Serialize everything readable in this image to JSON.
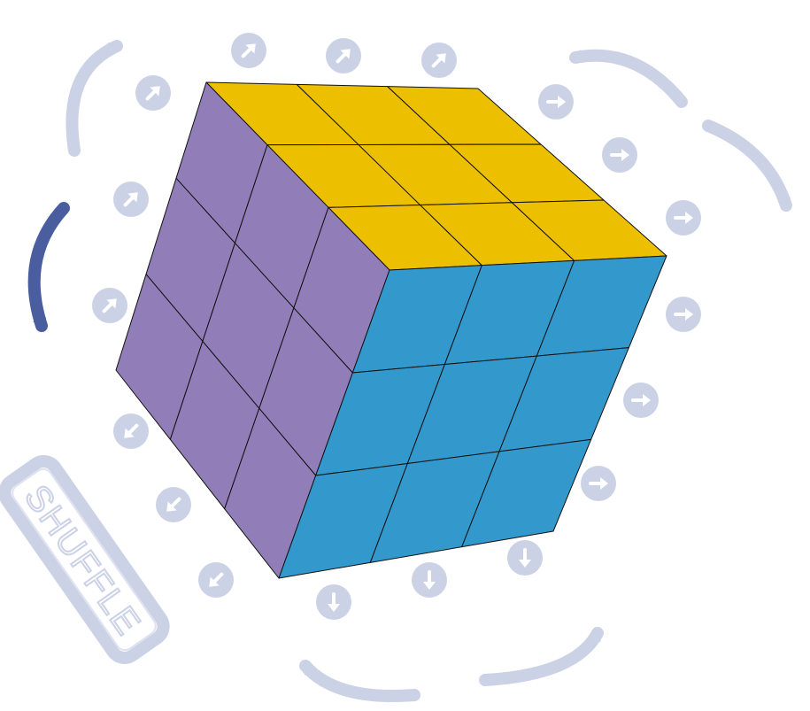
{
  "colors": {
    "faint": "#ccd2e6",
    "faint_glyph": "#ffffff",
    "active_arrow": "#4a5d9e",
    "top_face": "#ecbf00",
    "left_face": "#917eb9",
    "right_face": "#3399cc",
    "sticker_outline": "#111111"
  },
  "shuffle": {
    "label": "SHUFFLE"
  },
  "cube": {
    "size": 3,
    "faces": [
      "top",
      "left",
      "right"
    ]
  },
  "controls": {
    "top_row_arrows": "arrow-up-left",
    "upper_left_arrows": "arrow-up-left",
    "upper_right_arrows": "arrow-right",
    "lower_right_arrows": "arrow-right",
    "bottom_arrows": "arrow-down",
    "lower_left_arrows": "arrow-down-left"
  },
  "rotation_arrows": [
    "rotate-arrow-top-left",
    "rotate-arrow-top-right",
    "rotate-arrow-right",
    "rotate-arrow-left-active",
    "rotate-arrow-bottom-left",
    "rotate-arrow-bottom-right"
  ]
}
